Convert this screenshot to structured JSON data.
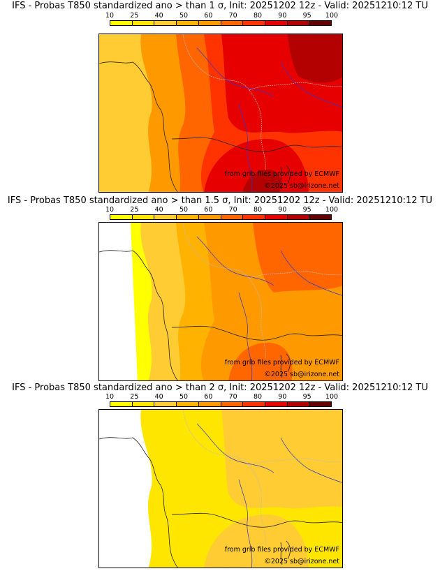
{
  "colorbar": {
    "ticks": [
      "10",
      "25",
      "40",
      "50",
      "60",
      "70",
      "80",
      "90",
      "95",
      "100"
    ],
    "colors": [
      "#ffff00",
      "#ffe600",
      "#ffcc33",
      "#ffb300",
      "#ff9900",
      "#ff6600",
      "#ff3300",
      "#e60000",
      "#b30000",
      "#660000"
    ]
  },
  "panels": [
    {
      "title": "IFS - Probas T850  standardized ano > than 1 σ, Init: 20251202 12z - Valid: 20251210:12 TU",
      "level": 0.75,
      "credit_source": "from grib files provided by ECMWF",
      "credit_copyright": "©2025 sb@irizone.net"
    },
    {
      "title": "IFS - Probas T850  standardized ano > than 1.5 σ, Init: 20251202 12z - Valid: 20251210:12 TU",
      "level": 0.5,
      "credit_source": "from grib files provided by ECMWF",
      "credit_copyright": "©2025 sb@irizone.net"
    },
    {
      "title": "IFS - Probas T850  standardized ano > than 2 σ, Init: 20251202 12z - Valid: 20251210:12 TU",
      "level": 0.25,
      "credit_source": "from grib files provided by ECMWF",
      "credit_copyright": "©2025 sb@irizone.net"
    }
  ]
}
